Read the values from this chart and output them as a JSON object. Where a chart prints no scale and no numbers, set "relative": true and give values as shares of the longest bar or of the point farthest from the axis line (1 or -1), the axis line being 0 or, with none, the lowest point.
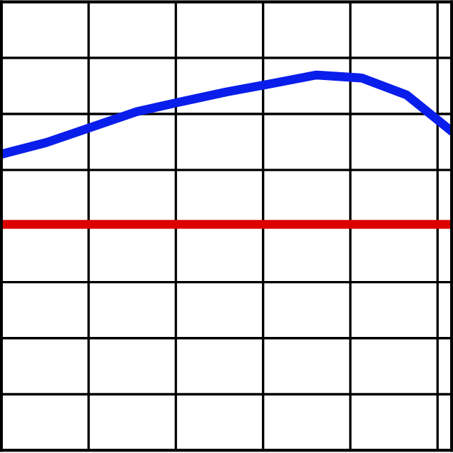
{
  "chart_data": {
    "type": "line",
    "relative": true,
    "grid": true,
    "legend": false,
    "marker": "none",
    "line_style": "solid",
    "categories": [
      null,
      null,
      null,
      null,
      null,
      null,
      null,
      null,
      null,
      null,
      null
    ],
    "series": [
      {
        "color": "#0a1eeb",
        "values": [
          0.789,
          0.82,
          0.861,
          0.902,
          0.929,
          0.955,
          0.977,
          1.0,
          0.992,
          0.947,
          0.85
        ]
      },
      {
        "color": "#dd0000",
        "values": [
          0.602,
          0.602,
          0.602,
          0.602,
          0.602,
          0.602,
          0.602,
          0.602,
          0.602,
          0.602,
          0.602
        ]
      }
    ]
  }
}
